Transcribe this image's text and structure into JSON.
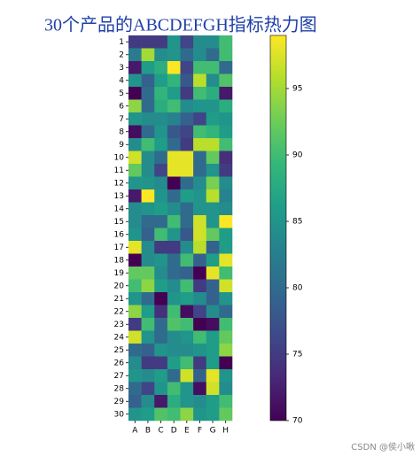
{
  "chart_data": {
    "type": "heatmap",
    "title": "30个产品的ABCDEFGH指标热力图",
    "x_categories": [
      "A",
      "B",
      "C",
      "D",
      "E",
      "F",
      "G",
      "H"
    ],
    "y_categories": [
      "1",
      "2",
      "3",
      "4",
      "5",
      "6",
      "7",
      "8",
      "9",
      "10",
      "11",
      "12",
      "13",
      "14",
      "15",
      "16",
      "17",
      "18",
      "19",
      "20",
      "21",
      "22",
      "23",
      "24",
      "25",
      "26",
      "27",
      "28",
      "29",
      "30"
    ],
    "values": [
      [
        75,
        75,
        75,
        85,
        76,
        84,
        84,
        90
      ],
      [
        82,
        95,
        84,
        85,
        80,
        84,
        80,
        90
      ],
      [
        72,
        86,
        88,
        99,
        76,
        90,
        90,
        80
      ],
      [
        85,
        79,
        86,
        89,
        78,
        96,
        84,
        91
      ],
      [
        70,
        80,
        89,
        86,
        75,
        90,
        88,
        72
      ],
      [
        94,
        80,
        88,
        90,
        84,
        85,
        85,
        88
      ],
      [
        85,
        84,
        84,
        83,
        79,
        76,
        86,
        85
      ],
      [
        71,
        80,
        85,
        78,
        76,
        90,
        89,
        86
      ],
      [
        84,
        90,
        86,
        80,
        75,
        96,
        96,
        90
      ],
      [
        97,
        84,
        80,
        98,
        98,
        80,
        92,
        74
      ],
      [
        92,
        84,
        76,
        98,
        98,
        80,
        85,
        75
      ],
      [
        85,
        85,
        84,
        70,
        80,
        84,
        93,
        84
      ],
      [
        72,
        99,
        85,
        80,
        86,
        85,
        96,
        83
      ],
      [
        84,
        85,
        86,
        84,
        80,
        85,
        85,
        84
      ],
      [
        84,
        80,
        80,
        90,
        80,
        97,
        85,
        99
      ],
      [
        85,
        79,
        90,
        85,
        78,
        97,
        92,
        86
      ],
      [
        98,
        84,
        75,
        75,
        84,
        96,
        79,
        86
      ],
      [
        70,
        84,
        85,
        80,
        90,
        79,
        86,
        98
      ],
      [
        92,
        92,
        84,
        80,
        79,
        70,
        98,
        90
      ],
      [
        90,
        94,
        86,
        84,
        90,
        75,
        79,
        97
      ],
      [
        85,
        80,
        70,
        85,
        86,
        84,
        79,
        85
      ],
      [
        94,
        86,
        74,
        90,
        71,
        76,
        84,
        80
      ],
      [
        75,
        90,
        80,
        91,
        90,
        70,
        71,
        90
      ],
      [
        97,
        85,
        80,
        84,
        85,
        90,
        86,
        92
      ],
      [
        80,
        79,
        85,
        84,
        84,
        85,
        86,
        94
      ],
      [
        84,
        75,
        75,
        86,
        90,
        75,
        86,
        70
      ],
      [
        85,
        84,
        86,
        80,
        97,
        79,
        98,
        85
      ],
      [
        80,
        76,
        85,
        90,
        85,
        71,
        97,
        84
      ],
      [
        79,
        84,
        72,
        88,
        85,
        84,
        86,
        90
      ],
      [
        85,
        86,
        91,
        90,
        94,
        85,
        86,
        92
      ]
    ],
    "colorbar_lim": [
      70,
      99
    ],
    "colorbar_ticks": [
      70,
      75,
      80,
      85,
      90,
      95
    ],
    "colormap": "viridis"
  },
  "watermark": "CSDN @侯小啾"
}
